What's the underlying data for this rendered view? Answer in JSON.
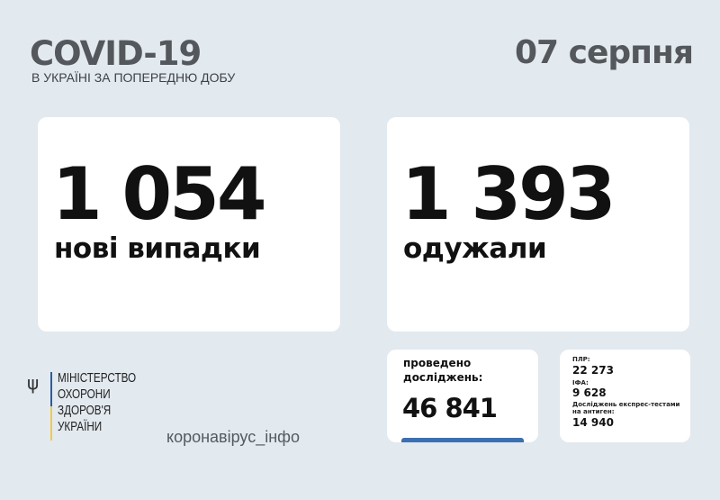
{
  "header": {
    "title": "COVID-19",
    "subtitle": "В УКРАЇНІ ЗА ПОПЕРЕДНЮ ДОБУ",
    "date": "07 серпня"
  },
  "cards": {
    "new_cases": {
      "value": "1 054",
      "label": "нові випадки"
    },
    "recovered": {
      "value": "1 393",
      "label": "одужали"
    },
    "tests": {
      "label_line1": "проведено",
      "label_line2": "досліджень:",
      "value": "46 841"
    },
    "breakdown": {
      "pcr_label": "ПЛР:",
      "pcr_value": "22 273",
      "ifa_label": "ІФА:",
      "ifa_value": "9 628",
      "antigen_label_line1": "Досліджень експрес-тестами",
      "antigen_label_line2": "на антиген:",
      "antigen_value": "14 940"
    }
  },
  "footer": {
    "ministry": [
      "МІНІСТЕРСТВО",
      "ОХОРОНИ",
      "ЗДОРОВ'Я",
      "УКРАЇНИ"
    ],
    "site": "коронавірус_інфо",
    "emblem_icon": "trident-icon"
  },
  "colors": {
    "background": "#e2e9ef",
    "accent_blue": "#3b6fb0",
    "accent_yellow": "#f2c94c"
  }
}
